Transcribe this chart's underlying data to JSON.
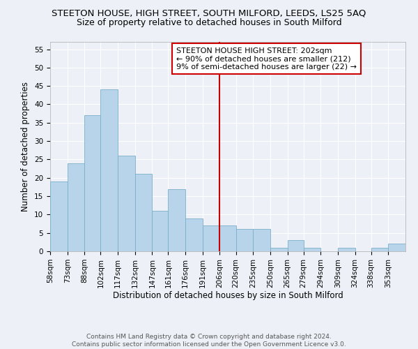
{
  "title": "STEETON HOUSE, HIGH STREET, SOUTH MILFORD, LEEDS, LS25 5AQ",
  "subtitle": "Size of property relative to detached houses in South Milford",
  "xlabel": "Distribution of detached houses by size in South Milford",
  "ylabel": "Number of detached properties",
  "bin_labels": [
    "58sqm",
    "73sqm",
    "88sqm",
    "102sqm",
    "117sqm",
    "132sqm",
    "147sqm",
    "161sqm",
    "176sqm",
    "191sqm",
    "206sqm",
    "220sqm",
    "235sqm",
    "250sqm",
    "265sqm",
    "279sqm",
    "294sqm",
    "309sqm",
    "324sqm",
    "338sqm",
    "353sqm"
  ],
  "bin_edges": [
    58,
    73,
    88,
    102,
    117,
    132,
    147,
    161,
    176,
    191,
    206,
    220,
    235,
    250,
    265,
    279,
    294,
    309,
    324,
    338,
    353,
    368
  ],
  "counts": [
    19,
    24,
    37,
    44,
    26,
    21,
    11,
    17,
    9,
    7,
    7,
    6,
    6,
    1,
    3,
    1,
    0,
    1,
    0,
    1,
    2
  ],
  "bar_color": "#b8d4ea",
  "bar_edge_color": "#7aafc8",
  "reference_line_x": 206,
  "reference_line_color": "#cc0000",
  "annotation_line1": "STEETON HOUSE HIGH STREET: 202sqm",
  "annotation_line2": "← 90% of detached houses are smaller (212)",
  "annotation_line3": "9% of semi-detached houses are larger (22) →",
  "annotation_box_edge_color": "#cc0000",
  "ylim": [
    0,
    57
  ],
  "yticks": [
    0,
    5,
    10,
    15,
    20,
    25,
    30,
    35,
    40,
    45,
    50,
    55
  ],
  "background_color": "#edf1f7",
  "grid_color": "#ffffff",
  "footer_line1": "Contains HM Land Registry data © Crown copyright and database right 2024.",
  "footer_line2": "Contains public sector information licensed under the Open Government Licence v3.0.",
  "title_fontsize": 9.5,
  "subtitle_fontsize": 9,
  "axis_label_fontsize": 8.5,
  "tick_fontsize": 7.5,
  "annotation_fontsize": 8,
  "footer_fontsize": 6.5
}
